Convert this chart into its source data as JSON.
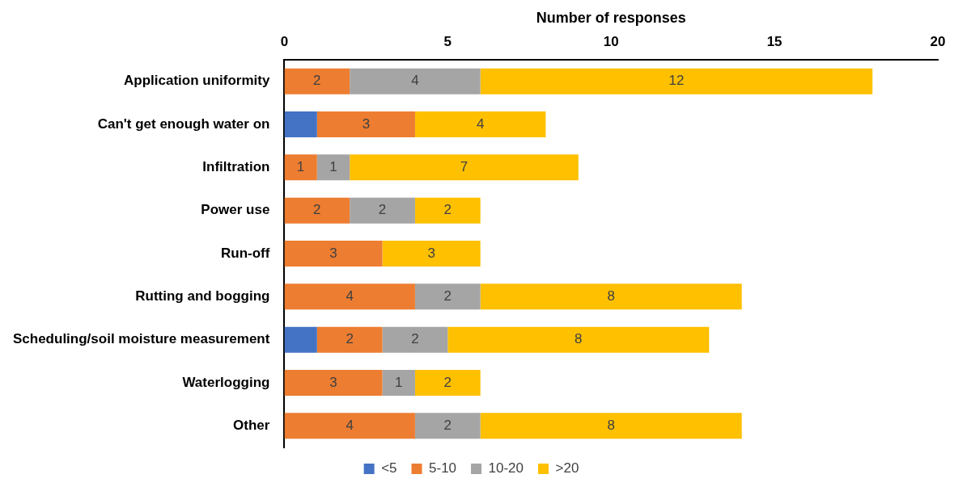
{
  "chart_data": {
    "type": "bar",
    "orientation": "horizontal",
    "stacked": true,
    "xlabel": "Number of responses",
    "categories": [
      "Application uniformity",
      "Can't get enough water on",
      "Infiltration",
      "Power use",
      "Run-off",
      "Rutting and bogging",
      "Scheduling/soil moisture measurement",
      "Waterlogging",
      "Other"
    ],
    "series": [
      {
        "name": "<5",
        "color": "#4472c4",
        "values": [
          null,
          1,
          null,
          null,
          null,
          null,
          1,
          null,
          null
        ],
        "value_labels": [
          null,
          null,
          null,
          null,
          null,
          null,
          null,
          null,
          null
        ]
      },
      {
        "name": "5-10",
        "color": "#ed7d31",
        "values": [
          2,
          3,
          1,
          2,
          3,
          4,
          2,
          3,
          4
        ],
        "value_labels": [
          "2",
          "3",
          "1",
          "2",
          "3",
          "4",
          "2",
          "3",
          "4"
        ]
      },
      {
        "name": "10-20",
        "color": "#a5a5a5",
        "values": [
          4,
          null,
          1,
          2,
          null,
          2,
          2,
          1,
          2
        ],
        "value_labels": [
          "4",
          null,
          "1",
          "2",
          null,
          "2",
          "2",
          "1",
          "2"
        ]
      },
      {
        "name": ">20",
        "color": "#ffc000",
        "values": [
          12,
          4,
          7,
          2,
          3,
          8,
          8,
          2,
          8
        ],
        "value_labels": [
          "12",
          "4",
          "7",
          "2",
          "3",
          "8",
          "8",
          "2",
          "8"
        ]
      }
    ],
    "xlim": [
      0,
      20
    ],
    "xticks": [
      0,
      5,
      10,
      15,
      20
    ],
    "legend": "bottom"
  }
}
